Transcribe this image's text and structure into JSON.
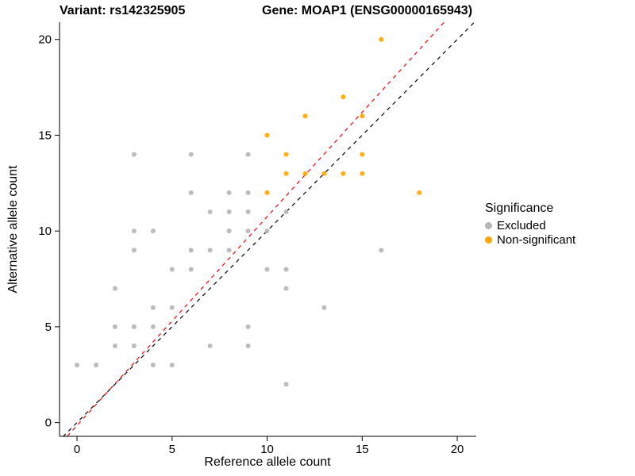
{
  "chart_data": {
    "type": "scatter",
    "title_left": "Variant: rs142325905",
    "title_right": "Gene: MOAP1 (ENSG00000165943)",
    "xlabel": "Reference allele count",
    "ylabel": "Alternative allele count",
    "xlim": [
      -0.92,
      21.0
    ],
    "ylim": [
      -0.72,
      20.9
    ],
    "xticks": [
      0,
      5,
      10,
      15,
      20
    ],
    "yticks": [
      0,
      5,
      10,
      15,
      20
    ],
    "grid": false,
    "legend": {
      "title": "Significance",
      "position": "right",
      "entries": [
        {
          "label": "Excluded",
          "color": "#B5B5B5"
        },
        {
          "label": "Non-significant",
          "color": "#FFA500"
        }
      ]
    },
    "series": [
      {
        "name": "Excluded",
        "color": "#B5B5B5",
        "points": [
          [
            0,
            3
          ],
          [
            1,
            3
          ],
          [
            2,
            4
          ],
          [
            2,
            5
          ],
          [
            2,
            7
          ],
          [
            3,
            4
          ],
          [
            3,
            5
          ],
          [
            3,
            9
          ],
          [
            3,
            10
          ],
          [
            3,
            14
          ],
          [
            4,
            3
          ],
          [
            4,
            5
          ],
          [
            4,
            6
          ],
          [
            4,
            10
          ],
          [
            5,
            3
          ],
          [
            5,
            6
          ],
          [
            5,
            8
          ],
          [
            6,
            8
          ],
          [
            6,
            9
          ],
          [
            6,
            12
          ],
          [
            6,
            14
          ],
          [
            7,
            4
          ],
          [
            7,
            9
          ],
          [
            7,
            11
          ],
          [
            8,
            9
          ],
          [
            8,
            10
          ],
          [
            8,
            11
          ],
          [
            8,
            12
          ],
          [
            9,
            4
          ],
          [
            9,
            5
          ],
          [
            9,
            10
          ],
          [
            9,
            11
          ],
          [
            9,
            12
          ],
          [
            9,
            14
          ],
          [
            10,
            8
          ],
          [
            10,
            10
          ],
          [
            11,
            2
          ],
          [
            11,
            7
          ],
          [
            11,
            8
          ],
          [
            11,
            11
          ],
          [
            13,
            6
          ],
          [
            16,
            9
          ]
        ]
      },
      {
        "name": "Non-significant",
        "color": "#FFA500",
        "points": [
          [
            10,
            12
          ],
          [
            10,
            15
          ],
          [
            11,
            13
          ],
          [
            11,
            14
          ],
          [
            12,
            13
          ],
          [
            12,
            16
          ],
          [
            13,
            13
          ],
          [
            14,
            13
          ],
          [
            14,
            17
          ],
          [
            15,
            13
          ],
          [
            15,
            14
          ],
          [
            15,
            16
          ],
          [
            16,
            20
          ],
          [
            18,
            12
          ]
        ]
      }
    ],
    "lines": [
      {
        "name": "identity",
        "style": "dashed",
        "color": "#000000",
        "slope": 1.0,
        "intercept": 0.0
      },
      {
        "name": "fit",
        "style": "dashed",
        "color": "#FF0000",
        "slope": 1.09,
        "intercept": -0.15
      }
    ]
  }
}
